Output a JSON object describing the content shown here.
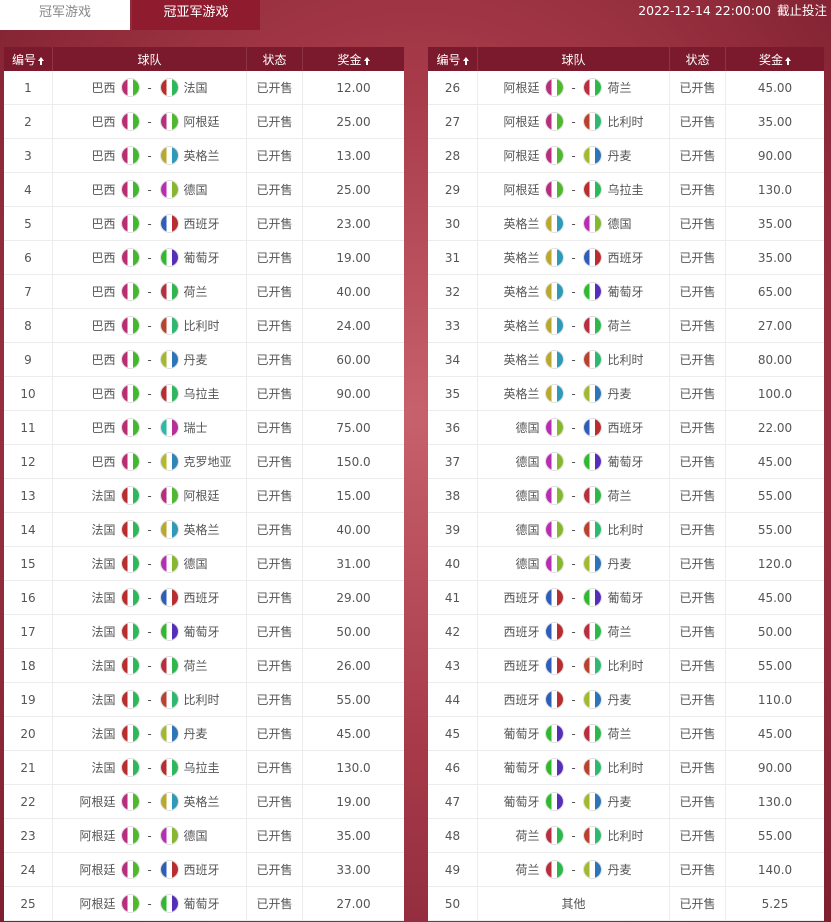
{
  "tabs": [
    "冠军游戏",
    "冠亚军游戏"
  ],
  "deadline": {
    "time": "2022-12-14 22:00:00",
    "label": "截止投注"
  },
  "columns": [
    "编号",
    "球队",
    "状态",
    "奖金"
  ],
  "separator": "-",
  "tables": [
    {
      "rows": [
        {
          "no": "1",
          "home": "巴西",
          "away": "法国",
          "status": "已开售",
          "prize": "12.00"
        },
        {
          "no": "2",
          "home": "巴西",
          "away": "阿根廷",
          "status": "已开售",
          "prize": "25.00"
        },
        {
          "no": "3",
          "home": "巴西",
          "away": "英格兰",
          "status": "已开售",
          "prize": "13.00"
        },
        {
          "no": "4",
          "home": "巴西",
          "away": "德国",
          "status": "已开售",
          "prize": "25.00"
        },
        {
          "no": "5",
          "home": "巴西",
          "away": "西班牙",
          "status": "已开售",
          "prize": "23.00"
        },
        {
          "no": "6",
          "home": "巴西",
          "away": "葡萄牙",
          "status": "已开售",
          "prize": "19.00"
        },
        {
          "no": "7",
          "home": "巴西",
          "away": "荷兰",
          "status": "已开售",
          "prize": "40.00"
        },
        {
          "no": "8",
          "home": "巴西",
          "away": "比利时",
          "status": "已开售",
          "prize": "24.00"
        },
        {
          "no": "9",
          "home": "巴西",
          "away": "丹麦",
          "status": "已开售",
          "prize": "60.00"
        },
        {
          "no": "10",
          "home": "巴西",
          "away": "乌拉圭",
          "status": "已开售",
          "prize": "90.00"
        },
        {
          "no": "11",
          "home": "巴西",
          "away": "瑞士",
          "status": "已开售",
          "prize": "75.00"
        },
        {
          "no": "12",
          "home": "巴西",
          "away": "克罗地亚",
          "status": "已开售",
          "prize": "150.0"
        },
        {
          "no": "13",
          "home": "法国",
          "away": "阿根廷",
          "status": "已开售",
          "prize": "15.00"
        },
        {
          "no": "14",
          "home": "法国",
          "away": "英格兰",
          "status": "已开售",
          "prize": "40.00"
        },
        {
          "no": "15",
          "home": "法国",
          "away": "德国",
          "status": "已开售",
          "prize": "31.00"
        },
        {
          "no": "16",
          "home": "法国",
          "away": "西班牙",
          "status": "已开售",
          "prize": "29.00"
        },
        {
          "no": "17",
          "home": "法国",
          "away": "葡萄牙",
          "status": "已开售",
          "prize": "50.00"
        },
        {
          "no": "18",
          "home": "法国",
          "away": "荷兰",
          "status": "已开售",
          "prize": "26.00"
        },
        {
          "no": "19",
          "home": "法国",
          "away": "比利时",
          "status": "已开售",
          "prize": "55.00"
        },
        {
          "no": "20",
          "home": "法国",
          "away": "丹麦",
          "status": "已开售",
          "prize": "45.00"
        },
        {
          "no": "21",
          "home": "法国",
          "away": "乌拉圭",
          "status": "已开售",
          "prize": "130.0"
        },
        {
          "no": "22",
          "home": "阿根廷",
          "away": "英格兰",
          "status": "已开售",
          "prize": "19.00"
        },
        {
          "no": "23",
          "home": "阿根廷",
          "away": "德国",
          "status": "已开售",
          "prize": "35.00"
        },
        {
          "no": "24",
          "home": "阿根廷",
          "away": "西班牙",
          "status": "已开售",
          "prize": "33.00"
        },
        {
          "no": "25",
          "home": "阿根廷",
          "away": "葡萄牙",
          "status": "已开售",
          "prize": "27.00"
        }
      ]
    },
    {
      "rows": [
        {
          "no": "26",
          "home": "阿根廷",
          "away": "荷兰",
          "status": "已开售",
          "prize": "45.00"
        },
        {
          "no": "27",
          "home": "阿根廷",
          "away": "比利时",
          "status": "已开售",
          "prize": "35.00"
        },
        {
          "no": "28",
          "home": "阿根廷",
          "away": "丹麦",
          "status": "已开售",
          "prize": "90.00"
        },
        {
          "no": "29",
          "home": "阿根廷",
          "away": "乌拉圭",
          "status": "已开售",
          "prize": "130.0"
        },
        {
          "no": "30",
          "home": "英格兰",
          "away": "德国",
          "status": "已开售",
          "prize": "35.00"
        },
        {
          "no": "31",
          "home": "英格兰",
          "away": "西班牙",
          "status": "已开售",
          "prize": "35.00"
        },
        {
          "no": "32",
          "home": "英格兰",
          "away": "葡萄牙",
          "status": "已开售",
          "prize": "65.00"
        },
        {
          "no": "33",
          "home": "英格兰",
          "away": "荷兰",
          "status": "已开售",
          "prize": "27.00"
        },
        {
          "no": "34",
          "home": "英格兰",
          "away": "比利时",
          "status": "已开售",
          "prize": "80.00"
        },
        {
          "no": "35",
          "home": "英格兰",
          "away": "丹麦",
          "status": "已开售",
          "prize": "100.0"
        },
        {
          "no": "36",
          "home": "德国",
          "away": "西班牙",
          "status": "已开售",
          "prize": "22.00"
        },
        {
          "no": "37",
          "home": "德国",
          "away": "葡萄牙",
          "status": "已开售",
          "prize": "45.00"
        },
        {
          "no": "38",
          "home": "德国",
          "away": "荷兰",
          "status": "已开售",
          "prize": "55.00"
        },
        {
          "no": "39",
          "home": "德国",
          "away": "比利时",
          "status": "已开售",
          "prize": "55.00"
        },
        {
          "no": "40",
          "home": "德国",
          "away": "丹麦",
          "status": "已开售",
          "prize": "120.0"
        },
        {
          "no": "41",
          "home": "西班牙",
          "away": "葡萄牙",
          "status": "已开售",
          "prize": "45.00"
        },
        {
          "no": "42",
          "home": "西班牙",
          "away": "荷兰",
          "status": "已开售",
          "prize": "50.00"
        },
        {
          "no": "43",
          "home": "西班牙",
          "away": "比利时",
          "status": "已开售",
          "prize": "55.00"
        },
        {
          "no": "44",
          "home": "西班牙",
          "away": "丹麦",
          "status": "已开售",
          "prize": "110.0"
        },
        {
          "no": "45",
          "home": "葡萄牙",
          "away": "荷兰",
          "status": "已开售",
          "prize": "45.00"
        },
        {
          "no": "46",
          "home": "葡萄牙",
          "away": "比利时",
          "status": "已开售",
          "prize": "90.00"
        },
        {
          "no": "47",
          "home": "葡萄牙",
          "away": "丹麦",
          "status": "已开售",
          "prize": "130.0"
        },
        {
          "no": "48",
          "home": "荷兰",
          "away": "比利时",
          "status": "已开售",
          "prize": "55.00"
        },
        {
          "no": "49",
          "home": "荷兰",
          "away": "丹麦",
          "status": "已开售",
          "prize": "140.0"
        },
        {
          "no": "50",
          "team": "其他",
          "status": "已开售",
          "prize": "5.25"
        }
      ]
    }
  ]
}
